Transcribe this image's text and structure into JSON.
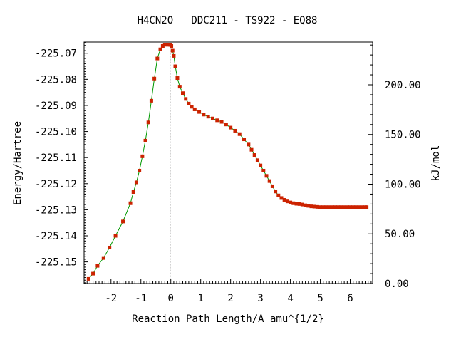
{
  "chart_data": {
    "type": "line",
    "title": "H4CN2O   DDC211 - TS922 - EQ88",
    "xlabel": "Reaction Path Length/A amu^{1/2}",
    "ylabel": "Energy/Hartree",
    "y2label": "kJ/mol",
    "xlim": [
      -2.9,
      6.75
    ],
    "ylim": [
      -225.1583,
      -225.0657
    ],
    "y2lim": [
      0,
      243
    ],
    "x_ticks": [
      "-2",
      "-1",
      "0",
      "1",
      "2",
      "3",
      "4",
      "5",
      "6"
    ],
    "y_ticks": [
      "-225.07",
      "-225.08",
      "-225.09",
      "-225.10",
      "-225.11",
      "-225.12",
      "-225.13",
      "-225.14",
      "-225.15"
    ],
    "y2_ticks": [
      "0.00",
      "50.00",
      "100.00",
      "150.00",
      "200.00"
    ],
    "ts_marker_x": -0.02,
    "line_color": "#009900",
    "marker_color": "#cc2200",
    "guide_color": "#888888",
    "series": [
      {
        "x": [
          -2.75,
          -2.6,
          -2.45,
          -2.25,
          -2.05,
          -1.85,
          -1.6,
          -1.35,
          -1.25,
          -1.15,
          -1.05,
          -0.95,
          -0.85,
          -0.75,
          -0.65,
          -0.55,
          -0.45,
          -0.35,
          -0.27,
          -0.2,
          -0.15,
          -0.1,
          -0.06,
          -0.02,
          0.02,
          0.06,
          0.1,
          0.15,
          0.22,
          0.3,
          0.4,
          0.5,
          0.6,
          0.7,
          0.8,
          0.95,
          1.1,
          1.25,
          1.4,
          1.55,
          1.7,
          1.85,
          2.0,
          2.15,
          2.3,
          2.45,
          2.6,
          2.7,
          2.8,
          2.9,
          3.0,
          3.1,
          3.2,
          3.3,
          3.4,
          3.5,
          3.6,
          3.7,
          3.8,
          3.9,
          4.0,
          4.1,
          4.2,
          4.3,
          4.4,
          4.5,
          4.6,
          4.7,
          4.8,
          4.9,
          5.0,
          5.1,
          5.2,
          5.3,
          5.4,
          5.5,
          5.6,
          5.7,
          5.8,
          5.9,
          6.0,
          6.1,
          6.2,
          6.3,
          6.4,
          6.5,
          6.55
        ],
        "y": [
          -225.1565,
          -225.1545,
          -225.1515,
          -225.1485,
          -225.1445,
          -225.14,
          -225.1345,
          -225.1275,
          -225.1232,
          -225.1195,
          -225.115,
          -225.1095,
          -225.1035,
          -225.0965,
          -225.0882,
          -225.0797,
          -225.072,
          -225.0685,
          -225.0672,
          -225.0667,
          -225.0667,
          -225.0667,
          -225.0667,
          -225.0668,
          -225.0672,
          -225.069,
          -225.071,
          -225.075,
          -225.0795,
          -225.0828,
          -225.0853,
          -225.0875,
          -225.0893,
          -225.0905,
          -225.0915,
          -225.0925,
          -225.0935,
          -225.0943,
          -225.095,
          -225.0957,
          -225.0963,
          -225.0973,
          -225.0985,
          -225.0997,
          -225.101,
          -225.103,
          -225.105,
          -225.107,
          -225.109,
          -225.111,
          -225.113,
          -225.115,
          -225.117,
          -225.119,
          -225.121,
          -225.123,
          -225.1245,
          -225.1255,
          -225.1262,
          -225.1268,
          -225.1272,
          -225.1275,
          -225.1277,
          -225.1278,
          -225.128,
          -225.1283,
          -225.1285,
          -225.1287,
          -225.1288,
          -225.1289,
          -225.129,
          -225.129,
          -225.129,
          -225.129,
          -225.129,
          -225.129,
          -225.129,
          -225.129,
          -225.129,
          -225.129,
          -225.129,
          -225.129,
          -225.129,
          -225.129,
          -225.129,
          -225.129,
          -225.129
        ]
      }
    ]
  }
}
